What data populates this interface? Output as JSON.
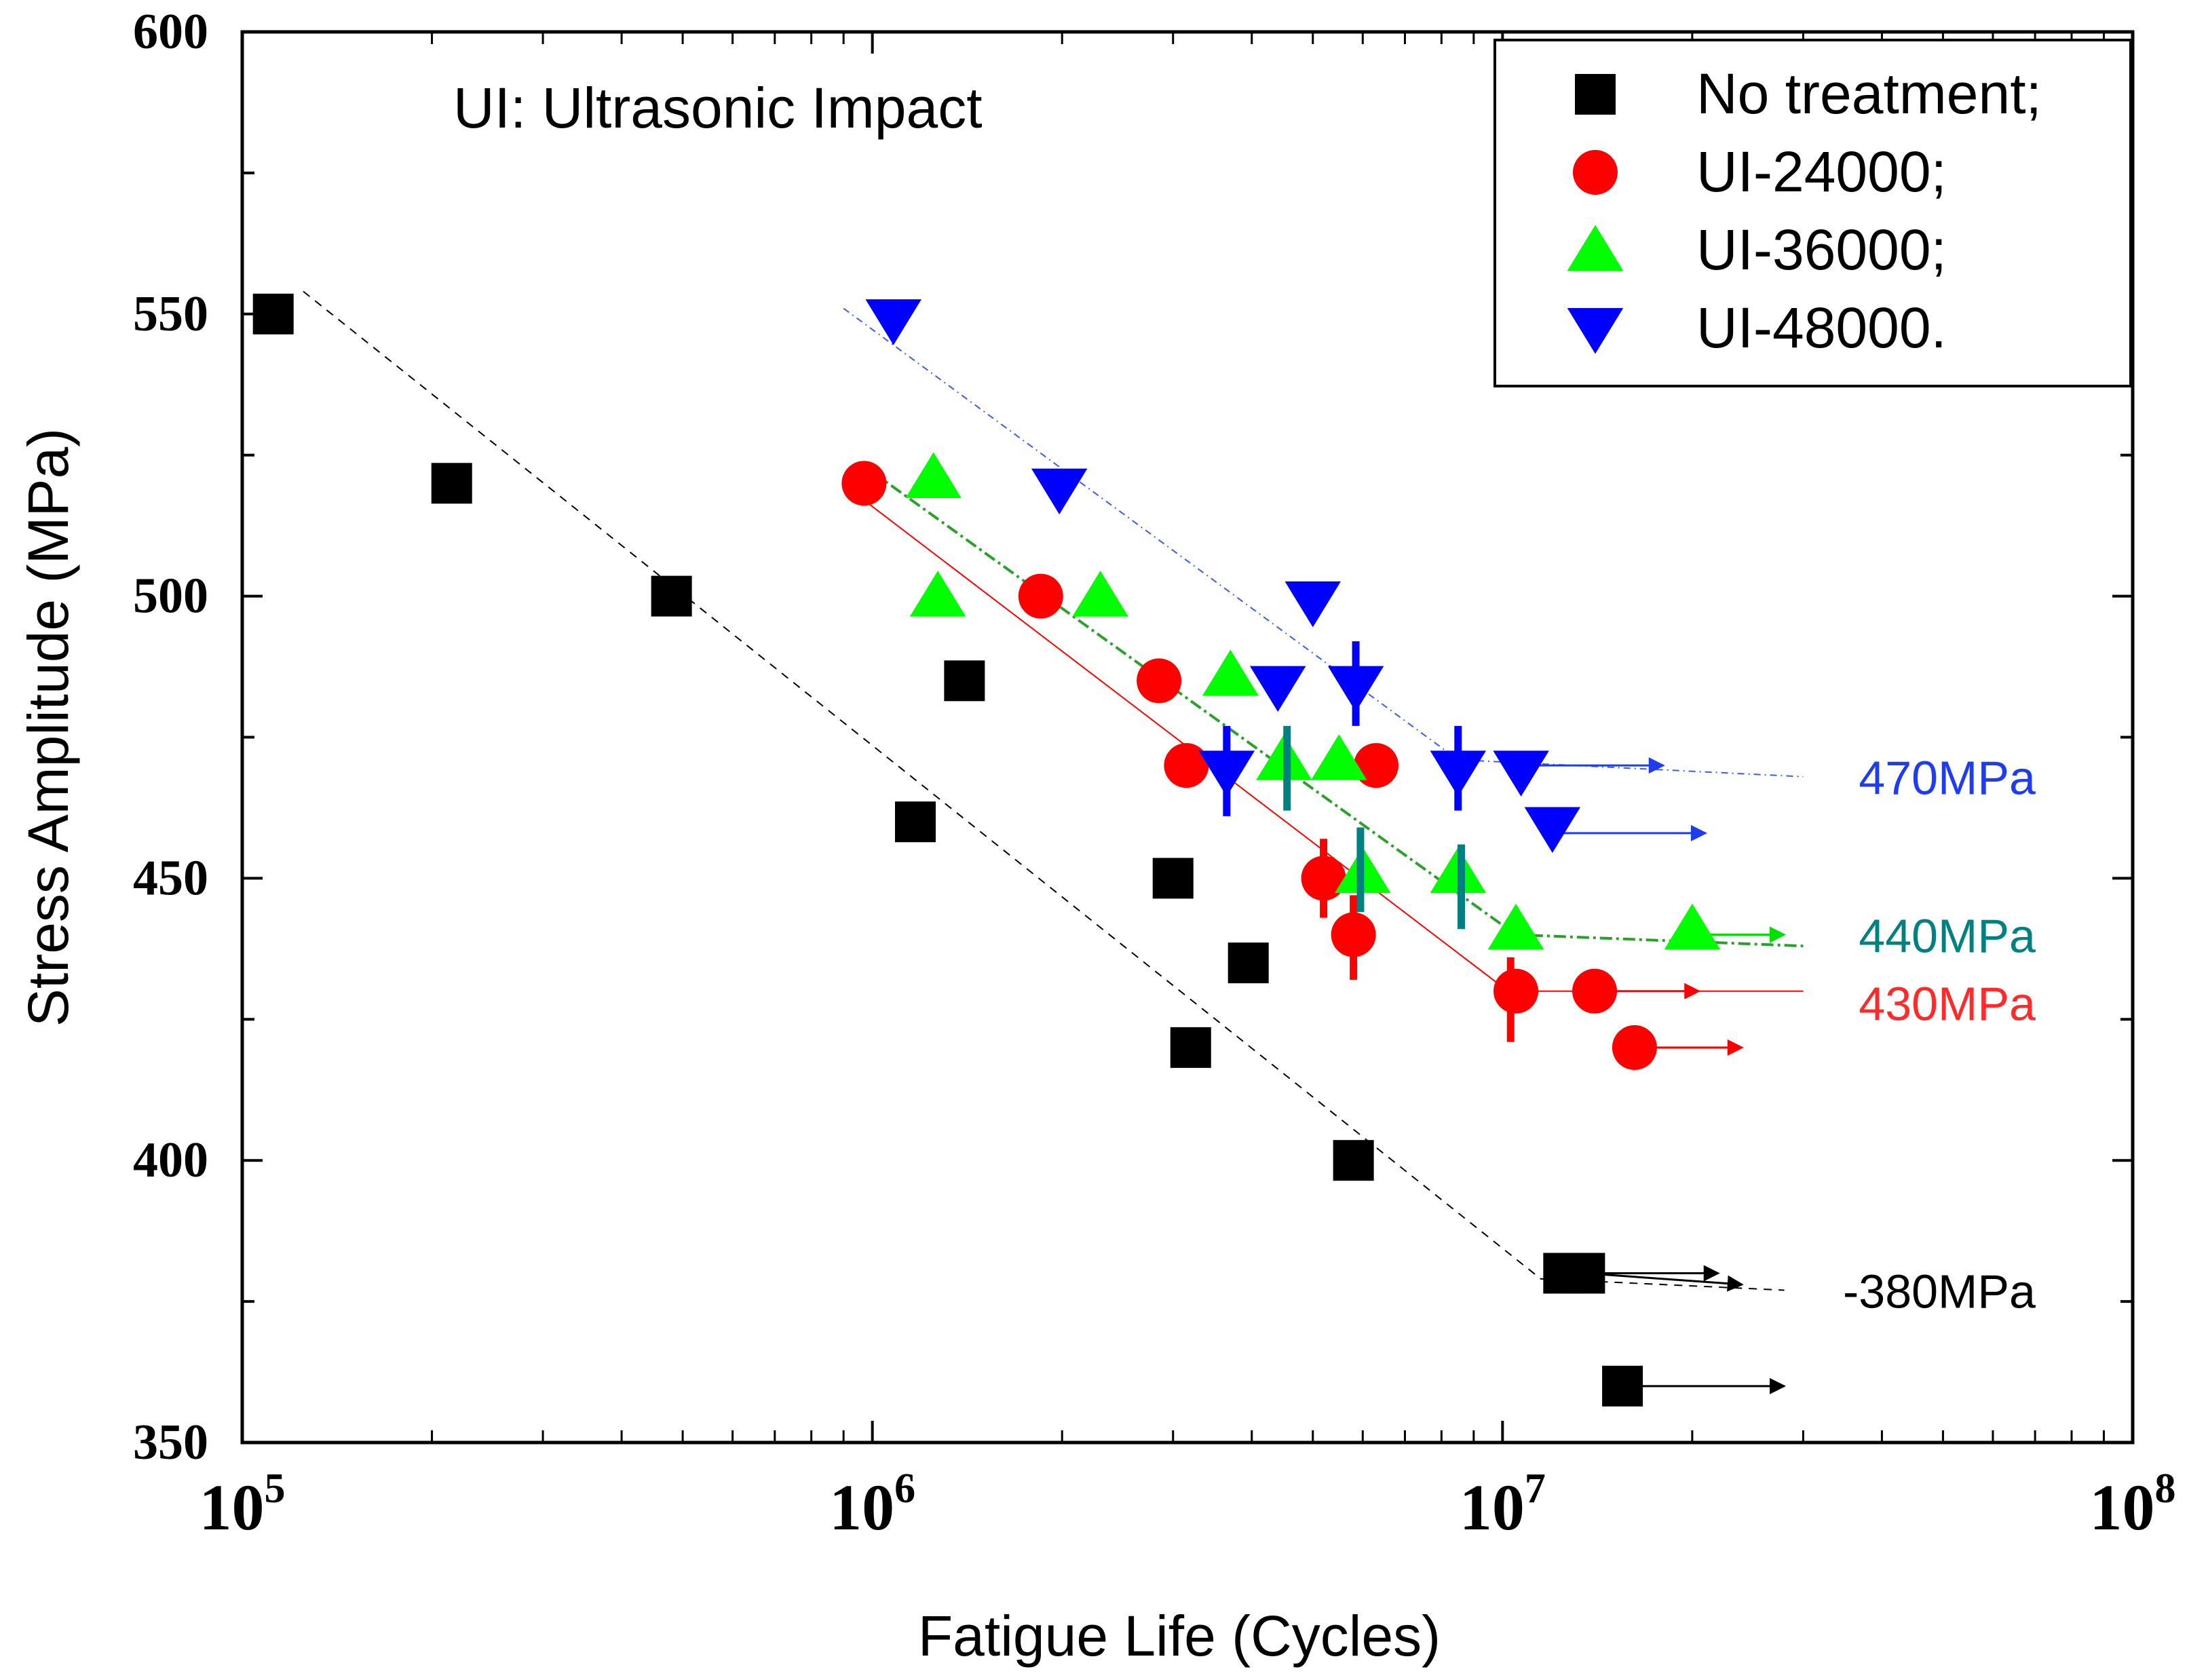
{
  "chart_data": {
    "type": "scatter",
    "title": "",
    "annotation": "UI: Ultrasonic Impact",
    "xlabel": "Fatigue Life (Cycles)",
    "ylabel": "Stress Amplitude (MPa)",
    "xscale": "log",
    "xlim": [
      100000,
      100000000
    ],
    "ylim": [
      350,
      600
    ],
    "x_ticks": [
      {
        "value": 100000,
        "base": "10",
        "exp": "5"
      },
      {
        "value": 1000000,
        "base": "10",
        "exp": "6"
      },
      {
        "value": 10000000,
        "base": "10",
        "exp": "7"
      },
      {
        "value": 100000000,
        "base": "10",
        "exp": "8"
      }
    ],
    "y_ticks": [
      {
        "value": 350,
        "label": "350"
      },
      {
        "value": 400,
        "label": "400"
      },
      {
        "value": 450,
        "label": "450"
      },
      {
        "value": 500,
        "label": "500"
      },
      {
        "value": 550,
        "label": "550"
      },
      {
        "value": 600,
        "label": "600"
      }
    ],
    "legend_position": "top-right",
    "series": [
      {
        "name": "No treatment;",
        "marker": "square",
        "color": "#000000",
        "points": [
          [
            112000,
            550
          ],
          [
            215000,
            520
          ],
          [
            480000,
            500
          ],
          [
            1400000,
            485
          ],
          [
            1170000,
            460
          ],
          [
            3000000,
            450
          ],
          [
            3950000,
            435
          ],
          [
            3200000,
            420
          ],
          [
            5800000,
            400
          ],
          [
            12500000,
            380
          ],
          [
            13500000,
            380
          ],
          [
            15500000,
            360
          ]
        ],
        "runouts": [
          {
            "from": [
              12500000,
              380
            ],
            "to": [
              22000000,
              380
            ]
          },
          {
            "from": [
              13500000,
              380
            ],
            "to": [
              24000000,
              378
            ]
          },
          {
            "from": [
              15500000,
              360
            ],
            "to": [
              28000000,
              360
            ]
          }
        ],
        "fit_line": {
          "color": "#000000",
          "dash": "12,10",
          "width": 2,
          "points": [
            [
              125000,
              554
            ],
            [
              11500000,
              379
            ],
            [
              28000000,
              377
            ]
          ]
        },
        "limit_label": "-380MPa",
        "limit_value": 377
      },
      {
        "name": "UI-24000;",
        "marker": "circle",
        "color": "#ff0000",
        "points": [
          [
            970000,
            520
          ],
          [
            1850000,
            500
          ],
          [
            2850000,
            485
          ],
          [
            3150000,
            470
          ],
          [
            6300000,
            470
          ],
          [
            5200000,
            450
          ],
          [
            5800000,
            440
          ],
          [
            10500000,
            430
          ],
          [
            14000000,
            430
          ],
          [
            16200000,
            420
          ]
        ],
        "error_bars": [
          {
            "x": 5200000,
            "y_low": 443,
            "y_high": 457
          },
          {
            "x": 5800000,
            "y_low": 432,
            "y_high": 447
          },
          {
            "x": 10300000,
            "y_low": 421,
            "y_high": 436
          }
        ],
        "runouts": [
          {
            "from": [
              14000000,
              430
            ],
            "to": [
              20500000,
              430
            ]
          },
          {
            "from": [
              16200000,
              420
            ],
            "to": [
              24000000,
              420
            ]
          }
        ],
        "fit_line": {
          "color": "#ff0000",
          "dash": "",
          "width": 2,
          "points": [
            [
              970000,
              517
            ],
            [
              10200000,
              430
            ],
            [
              30000000,
              430
            ]
          ]
        },
        "limit_label": "430MPa",
        "limit_value": 428
      },
      {
        "name": "UI-36000;",
        "marker": "triangle-up",
        "color": "#00ff00",
        "points": [
          [
            1250000,
            521
          ],
          [
            1270000,
            500
          ],
          [
            2300000,
            500
          ],
          [
            3700000,
            486
          ],
          [
            4500000,
            471
          ],
          [
            5500000,
            471
          ],
          [
            6000000,
            451
          ],
          [
            8500000,
            451
          ],
          [
            10500000,
            441
          ],
          [
            20000000,
            441
          ]
        ],
        "error_bars": [
          {
            "x": 4550000,
            "y_low": 462,
            "y_high": 477
          },
          {
            "x": 5950000,
            "y_low": 444,
            "y_high": 459
          },
          {
            "x": 8600000,
            "y_low": 441,
            "y_high": 456
          }
        ],
        "runouts": [
          {
            "from": [
              20000000,
              440
            ],
            "to": [
              28000000,
              440
            ]
          }
        ],
        "fit_line": {
          "color": "#2aa12a",
          "dash": "18,6,4,6",
          "width": 4,
          "points": [
            [
              1000000,
              522
            ],
            [
              10500000,
              440
            ],
            [
              30000000,
              438
            ]
          ]
        },
        "limit_label": "440MPa",
        "limit_value": 440
      },
      {
        "name": "UI-48000.",
        "marker": "triangle-down",
        "color": "#0000ff",
        "points": [
          [
            1080000,
            549
          ],
          [
            1980000,
            519
          ],
          [
            5000000,
            499
          ],
          [
            4400000,
            484
          ],
          [
            5850000,
            484
          ],
          [
            3650000,
            469
          ],
          [
            8500000,
            469
          ],
          [
            10700000,
            469
          ],
          [
            12000000,
            459
          ]
        ],
        "error_bars": [
          {
            "x": 3650000,
            "y_low": 461,
            "y_high": 477
          },
          {
            "x": 5850000,
            "y_low": 477,
            "y_high": 492
          },
          {
            "x": 8500000,
            "y_low": 462,
            "y_high": 477
          }
        ],
        "runouts": [
          {
            "from": [
              10700000,
              470
            ],
            "to": [
              18000000,
              470
            ]
          },
          {
            "from": [
              12000000,
              458
            ],
            "to": [
              21000000,
              458
            ]
          }
        ],
        "fit_line": {
          "color": "#3a5ce8",
          "dash": "10,6,2,6",
          "width": 2,
          "points": [
            [
              900000,
              551
            ],
            [
              8500000,
              471
            ],
            [
              30000000,
              468
            ]
          ]
        },
        "limit_label": "470MPa",
        "limit_value": 468
      }
    ],
    "limit_label_colors": {
      "470MPa": "#1f3df0",
      "440MPa": "#008080",
      "430MPa": "#ff2a2a",
      "-380MPa": "#000000"
    }
  }
}
